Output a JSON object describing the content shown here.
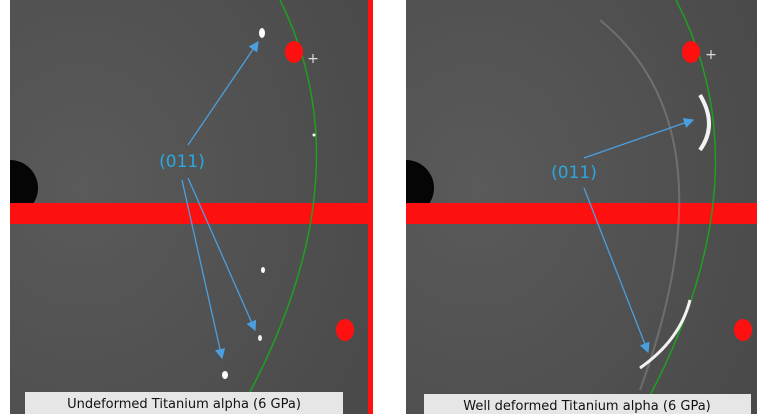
{
  "panels": [
    {
      "label": "(011)",
      "caption": "Undeformed Titanium alpha (6 GPa)"
    },
    {
      "label": "(011)",
      "caption": "Well deformed Titanium alpha (6 GPa)"
    }
  ]
}
